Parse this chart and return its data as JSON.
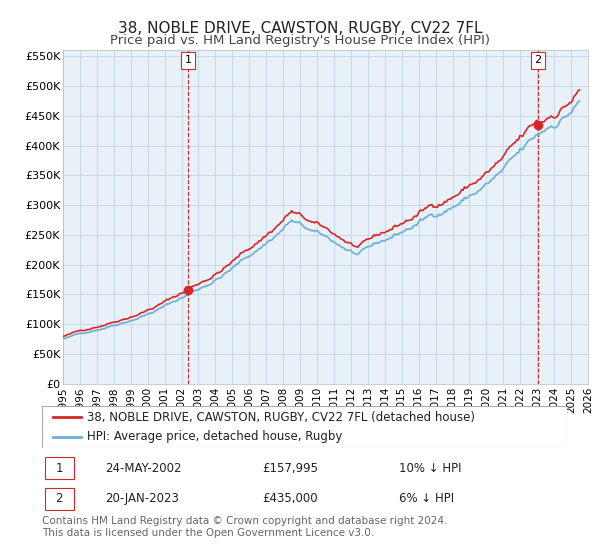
{
  "title": "38, NOBLE DRIVE, CAWSTON, RUGBY, CV22 7FL",
  "subtitle": "Price paid vs. HM Land Registry's House Price Index (HPI)",
  "ylim": [
    0,
    560000
  ],
  "xlim_start": 1995.0,
  "xlim_end": 2026.0,
  "yticks": [
    0,
    50000,
    100000,
    150000,
    200000,
    250000,
    300000,
    350000,
    400000,
    450000,
    500000,
    550000
  ],
  "ytick_labels": [
    "£0",
    "£50K",
    "£100K",
    "£150K",
    "£200K",
    "£250K",
    "£300K",
    "£350K",
    "£400K",
    "£450K",
    "£500K",
    "£550K"
  ],
  "xticks": [
    1995,
    1996,
    1997,
    1998,
    1999,
    2000,
    2001,
    2002,
    2003,
    2004,
    2005,
    2006,
    2007,
    2008,
    2009,
    2010,
    2011,
    2012,
    2013,
    2014,
    2015,
    2016,
    2017,
    2018,
    2019,
    2020,
    2021,
    2022,
    2023,
    2024,
    2025,
    2026
  ],
  "hpi_color": "#6baed6",
  "price_color": "#d62728",
  "marker_color": "#d62728",
  "vline_color": "#d62728",
  "grid_color": "#c8d8e8",
  "plot_bg": "#e8f0f8",
  "legend_label_price": "38, NOBLE DRIVE, CAWSTON, RUGBY, CV22 7FL (detached house)",
  "legend_label_hpi": "HPI: Average price, detached house, Rugby",
  "annotation1_date": "24-MAY-2002",
  "annotation1_price": "£157,995",
  "annotation1_hpi": "10% ↓ HPI",
  "annotation2_date": "20-JAN-2023",
  "annotation2_price": "£435,000",
  "annotation2_hpi": "6% ↓ HPI",
  "footnote": "Contains HM Land Registry data © Crown copyright and database right 2024.\nThis data is licensed under the Open Government Licence v3.0.",
  "sale1_x": 2002.39,
  "sale1_y": 157995,
  "sale2_x": 2023.05,
  "sale2_y": 435000,
  "title_fontsize": 11,
  "subtitle_fontsize": 9.5,
  "tick_fontsize": 8,
  "legend_fontsize": 8.5,
  "annotation_fontsize": 8.5,
  "footnote_fontsize": 7.5
}
